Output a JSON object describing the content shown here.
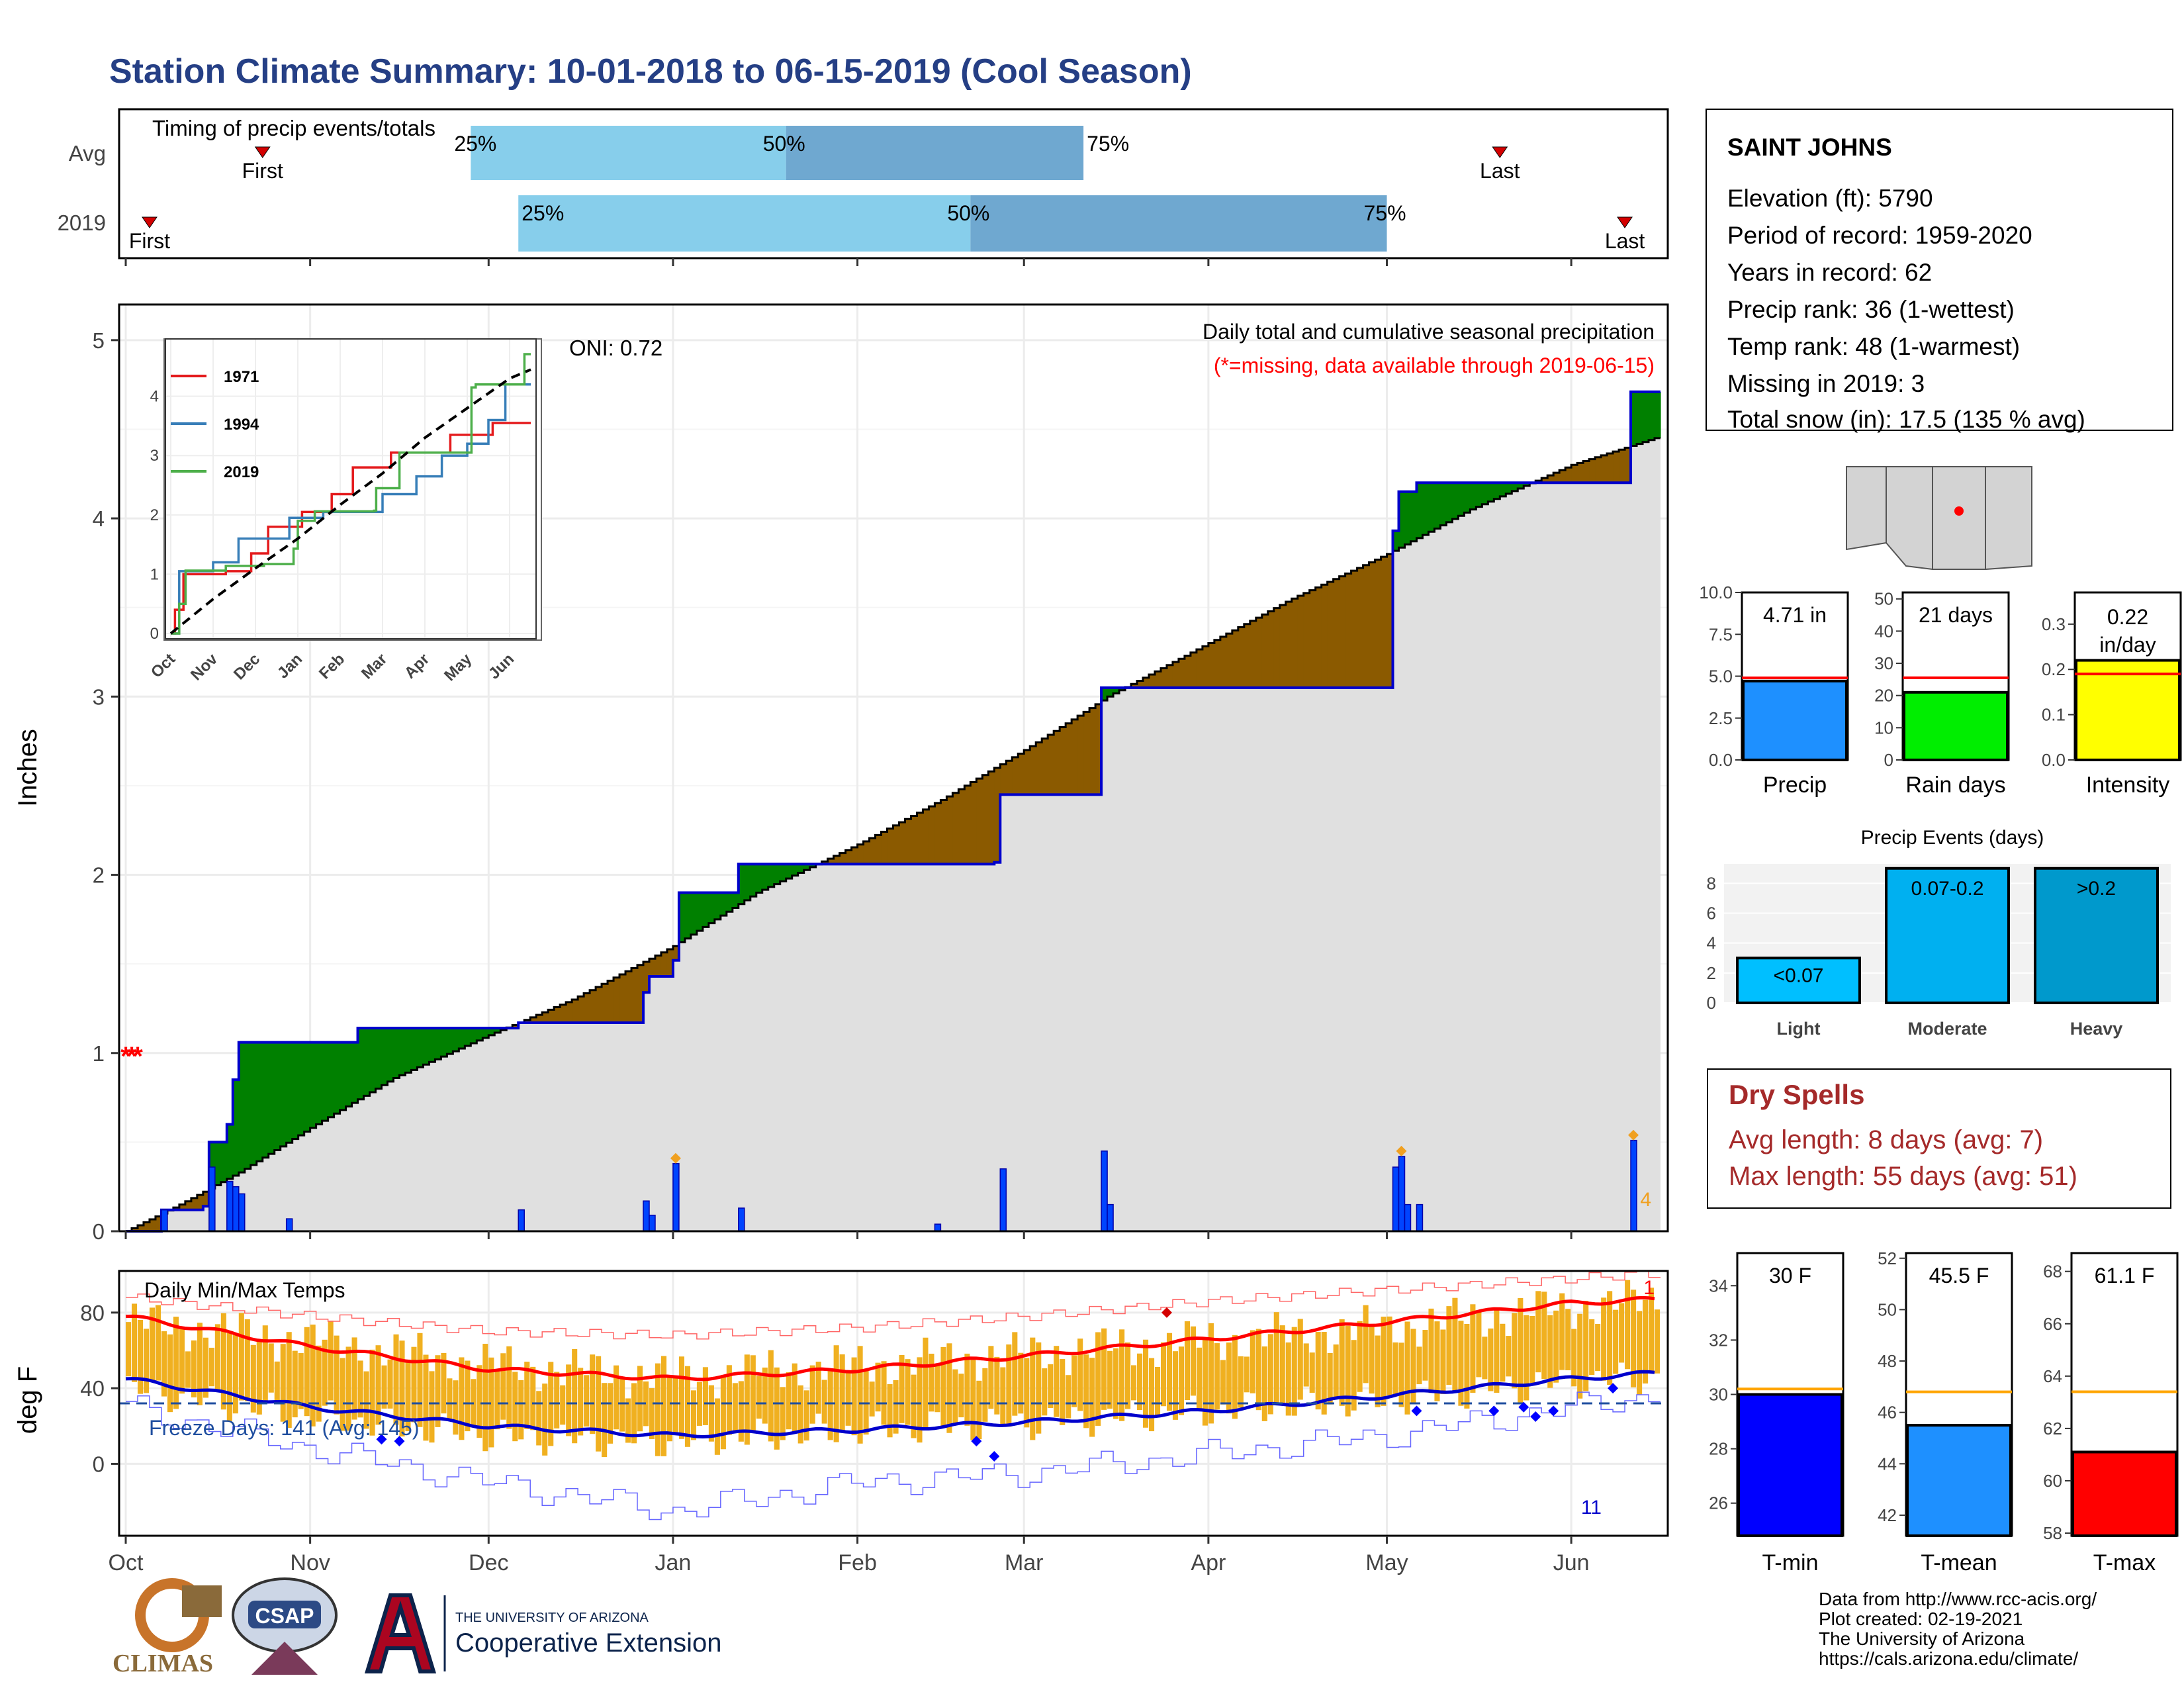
{
  "page": {
    "title": "Station Climate Summary: 10-01-2018 to 06-15-2019 (Cool Season)",
    "footer_credits": [
      "Data from http://www.rcc-acis.org/",
      "Plot created: 02-19-2021",
      "The University of Arizona",
      "https://cals.arizona.edu/climate/"
    ],
    "logos": {
      "climas": "CLIMAS",
      "csap": "CSAP",
      "ua_line1": "THE UNIVERSITY OF ARIZONA",
      "ua_line2": "Cooperative Extension"
    }
  },
  "station": {
    "name": "SAINT JOHNS",
    "lines": [
      "Elevation (ft): 5790",
      "Period of record: 1959-2020",
      "Years in record: 62",
      "Precip rank: 36 (1-wettest)",
      "Temp rank: 48 (1-warmest)",
      "Missing in 2019: 3",
      "Total snow (in): 17.5 (135 % avg)"
    ]
  },
  "dry_spells": {
    "title": "Dry Spells",
    "lines": [
      "Avg length: 8 days (avg: 7)",
      "Max length: 55 days (avg: 51)"
    ]
  },
  "chart_data": [
    {
      "id": "timing",
      "type": "bar",
      "title": "Timing of precip events/totals",
      "rows": [
        {
          "label": "Avg",
          "first": "2018-10-24",
          "p25": "2018-11-28",
          "p50": "2019-01-20",
          "p75": "2019-03-11",
          "last": "2019-05-20"
        },
        {
          "label": "2019",
          "first": "2018-10-05",
          "p25": "2018-12-06",
          "p50": "2019-02-20",
          "p75": "2019-05-01",
          "last": "2019-06-10"
        }
      ],
      "labels": {
        "first": "First",
        "last": "Last",
        "p25": "25%",
        "p50": "50%",
        "p75": "75%"
      },
      "colors": {
        "light": "#87ceeb",
        "dark": "#6fa8d0",
        "marker": "#d40000"
      }
    },
    {
      "id": "precip",
      "type": "area",
      "ylabel": "Inches",
      "ylim": [
        0,
        5.2
      ],
      "y_ticks": [
        0,
        1,
        2,
        3,
        4,
        5
      ],
      "x_tick_labels": [
        "Oct",
        "Nov",
        "Dec",
        "Jan",
        "Feb",
        "Mar",
        "Apr",
        "May",
        "Jun"
      ],
      "x_tick_dates": [
        "2018-10-01",
        "2018-11-01",
        "2018-12-01",
        "2019-01-01",
        "2019-02-01",
        "2019-03-01",
        "2019-04-01",
        "2019-05-01",
        "2019-06-01"
      ],
      "annotation_title": "Daily total and cumulative seasonal precipitation",
      "annotation_missing": "(*=missing, data available through 2019-06-15)",
      "oni": "ONI: 0.72",
      "right_count": "4",
      "avg_cumulative": [
        [
          "2018-10-01",
          0
        ],
        [
          "2018-10-10",
          0.15
        ],
        [
          "2018-10-20",
          0.33
        ],
        [
          "2018-11-01",
          0.58
        ],
        [
          "2018-11-15",
          0.86
        ],
        [
          "2018-12-01",
          1.1
        ],
        [
          "2018-12-15",
          1.3
        ],
        [
          "2019-01-01",
          1.6
        ],
        [
          "2019-01-15",
          1.9
        ],
        [
          "2019-02-01",
          2.17
        ],
        [
          "2019-02-15",
          2.42
        ],
        [
          "2019-03-01",
          2.7
        ],
        [
          "2019-03-15",
          3.0
        ],
        [
          "2019-04-01",
          3.3
        ],
        [
          "2019-04-15",
          3.55
        ],
        [
          "2019-05-01",
          3.8
        ],
        [
          "2019-05-15",
          4.05
        ],
        [
          "2019-06-01",
          4.3
        ],
        [
          "2019-06-15",
          4.45
        ]
      ],
      "cumulative_2019": [
        [
          "2018-10-01",
          0
        ],
        [
          "2018-10-07",
          0.12
        ],
        [
          "2018-10-14",
          0.14
        ],
        [
          "2018-10-15",
          0.5
        ],
        [
          "2018-10-18",
          0.6
        ],
        [
          "2018-10-19",
          0.85
        ],
        [
          "2018-10-20",
          1.06
        ],
        [
          "2018-10-22",
          1.06
        ],
        [
          "2018-11-09",
          1.14
        ],
        [
          "2018-12-05",
          1.14
        ],
        [
          "2018-12-06",
          1.17
        ],
        [
          "2018-12-27",
          1.34
        ],
        [
          "2018-12-28",
          1.43
        ],
        [
          "2019-01-01",
          1.52
        ],
        [
          "2019-01-02",
          1.9
        ],
        [
          "2019-01-12",
          2.06
        ],
        [
          "2019-02-24",
          2.07
        ],
        [
          "2019-02-25",
          2.45
        ],
        [
          "2019-03-13",
          2.45
        ],
        [
          "2019-03-14",
          3.05
        ],
        [
          "2019-05-01",
          3.05
        ],
        [
          "2019-05-02",
          3.93
        ],
        [
          "2019-05-03",
          4.15
        ],
        [
          "2019-05-05",
          4.15
        ],
        [
          "2019-05-06",
          4.2
        ],
        [
          "2019-06-10",
          4.2
        ],
        [
          "2019-06-11",
          4.71
        ],
        [
          "2019-06-15",
          4.71
        ]
      ],
      "daily": [
        [
          "2018-10-07",
          0.12
        ],
        [
          "2018-10-15",
          0.36
        ],
        [
          "2018-10-18",
          0.28
        ],
        [
          "2018-10-19",
          0.25
        ],
        [
          "2018-10-20",
          0.21
        ],
        [
          "2018-10-28",
          0.07
        ],
        [
          "2018-12-06",
          0.12
        ],
        [
          "2018-12-27",
          0.17
        ],
        [
          "2018-12-28",
          0.09
        ],
        [
          "2019-01-01",
          0.38
        ],
        [
          "2019-01-12",
          0.13
        ],
        [
          "2019-02-14",
          0.04
        ],
        [
          "2019-02-25",
          0.35
        ],
        [
          "2019-03-14",
          0.45
        ],
        [
          "2019-03-15",
          0.15
        ],
        [
          "2019-05-02",
          0.36
        ],
        [
          "2019-05-03",
          0.42
        ],
        [
          "2019-05-04",
          0.15
        ],
        [
          "2019-05-06",
          0.15
        ],
        [
          "2019-06-11",
          0.51
        ]
      ],
      "missing_markers": [
        [
          "2018-10-01",
          1.0
        ],
        [
          "2018-10-02",
          1.0
        ],
        [
          "2018-10-03",
          1.0
        ]
      ],
      "colors": {
        "surplus": "#008000",
        "deficit": "#8b5a00",
        "avg_fill": "#e0e0e0",
        "line_2019": "#0000cc",
        "daily": "#0044ff",
        "missing": "#ff0000",
        "snow_marker": "#f0a020"
      }
    },
    {
      "id": "analog_inset",
      "type": "line",
      "x_tick_labels": [
        "Oct",
        "Nov",
        "Dec",
        "Jan",
        "Feb",
        "Mar",
        "Apr",
        "May",
        "Jun"
      ],
      "y_ticks": [
        0,
        1,
        2,
        3,
        4
      ],
      "ylim": [
        0,
        4.9
      ],
      "series": [
        {
          "name": "1971",
          "color": "#e41a1c",
          "values": [
            [
              0,
              0
            ],
            [
              0.1,
              0.4
            ],
            [
              0.3,
              1.0
            ],
            [
              1.3,
              1.05
            ],
            [
              1.9,
              1.35
            ],
            [
              2.3,
              1.8
            ],
            [
              3.1,
              2.05
            ],
            [
              3.8,
              2.35
            ],
            [
              4.3,
              2.8
            ],
            [
              5.2,
              3.05
            ],
            [
              6.6,
              3.35
            ],
            [
              7.6,
              3.55
            ],
            [
              8.5,
              3.55
            ]
          ]
        },
        {
          "name": "1994",
          "color": "#377eb8",
          "values": [
            [
              0,
              0
            ],
            [
              0.2,
              1.05
            ],
            [
              1.0,
              1.2
            ],
            [
              1.6,
              1.6
            ],
            [
              2.8,
              1.95
            ],
            [
              3.6,
              2.05
            ],
            [
              5.0,
              2.35
            ],
            [
              5.8,
              2.65
            ],
            [
              6.4,
              3.0
            ],
            [
              7.0,
              3.2
            ],
            [
              7.5,
              3.6
            ],
            [
              7.9,
              4.2
            ],
            [
              8.5,
              4.2
            ]
          ]
        },
        {
          "name": "2019",
          "color": "#4daf4a",
          "values": [
            [
              0,
              0
            ],
            [
              0.2,
              0.5
            ],
            [
              0.35,
              1.06
            ],
            [
              1.3,
              1.14
            ],
            [
              2.2,
              1.17
            ],
            [
              2.9,
              1.43
            ],
            [
              3.0,
              1.9
            ],
            [
              3.4,
              2.06
            ],
            [
              4.8,
              2.07
            ],
            [
              4.85,
              2.45
            ],
            [
              5.4,
              3.05
            ],
            [
              7.05,
              3.05
            ],
            [
              7.1,
              4.15
            ],
            [
              7.2,
              4.2
            ],
            [
              8.3,
              4.2
            ],
            [
              8.35,
              4.71
            ],
            [
              8.5,
              4.71
            ]
          ]
        },
        {
          "name": "",
          "color": "#000000",
          "dashed": true,
          "values": [
            [
              0,
              0
            ],
            [
              1,
              0.58
            ],
            [
              2,
              1.1
            ],
            [
              3,
              1.6
            ],
            [
              4,
              2.17
            ],
            [
              5,
              2.7
            ],
            [
              6,
              3.3
            ],
            [
              7,
              3.8
            ],
            [
              8,
              4.3
            ],
            [
              8.5,
              4.45
            ]
          ]
        }
      ]
    },
    {
      "id": "temps",
      "type": "bar",
      "title": "Daily Min/Max Temps",
      "ylabel": "deg F",
      "ylim": [
        -38,
        102
      ],
      "y_ticks": [
        0,
        40,
        80
      ],
      "freeze_label": "Freeze Days: 141 (Avg: 145)",
      "freeze_line": 32,
      "count_top": "1",
      "count_bottom": "11",
      "x_tick_labels": [
        "Oct",
        "Nov",
        "Dec",
        "Jan",
        "Feb",
        "Mar",
        "Apr",
        "May",
        "Jun"
      ],
      "avg_max": [
        [
          "2018-10-01",
          78
        ],
        [
          "2018-11-01",
          62
        ],
        [
          "2018-12-01",
          50
        ],
        [
          "2019-01-01",
          45
        ],
        [
          "2019-02-01",
          50
        ],
        [
          "2019-03-01",
          57
        ],
        [
          "2019-04-01",
          66
        ],
        [
          "2019-05-01",
          75
        ],
        [
          "2019-06-01",
          85
        ],
        [
          "2019-06-15",
          87
        ]
      ],
      "avg_min": [
        [
          "2018-10-01",
          45
        ],
        [
          "2018-11-01",
          30
        ],
        [
          "2018-12-01",
          20
        ],
        [
          "2019-01-01",
          15
        ],
        [
          "2019-02-01",
          18
        ],
        [
          "2019-03-01",
          22
        ],
        [
          "2019-04-01",
          28
        ],
        [
          "2019-05-01",
          36
        ],
        [
          "2019-06-01",
          45
        ],
        [
          "2019-06-15",
          48
        ]
      ],
      "rec_max": [
        [
          "2018-10-01",
          88
        ],
        [
          "2018-11-01",
          78
        ],
        [
          "2018-12-01",
          70
        ],
        [
          "2019-01-01",
          68
        ],
        [
          "2019-02-01",
          72
        ],
        [
          "2019-03-01",
          78
        ],
        [
          "2019-04-01",
          86
        ],
        [
          "2019-05-01",
          92
        ],
        [
          "2019-06-01",
          98
        ],
        [
          "2019-06-15",
          101
        ]
      ],
      "rec_min": [
        [
          "2018-10-01",
          30
        ],
        [
          "2018-11-01",
          8
        ],
        [
          "2018-12-01",
          -10
        ],
        [
          "2019-01-01",
          -25
        ],
        [
          "2019-02-01",
          -10
        ],
        [
          "2019-03-01",
          -5
        ],
        [
          "2019-04-01",
          5
        ],
        [
          "2019-05-01",
          15
        ],
        [
          "2019-06-01",
          30
        ],
        [
          "2019-06-15",
          36
        ]
      ],
      "obs_max_anchor": [
        [
          "2018-10-01",
          75
        ],
        [
          "2018-11-01",
          65
        ],
        [
          "2018-12-01",
          52
        ],
        [
          "2019-01-01",
          46
        ],
        [
          "2019-02-01",
          52
        ],
        [
          "2019-03-01",
          58
        ],
        [
          "2019-04-01",
          65
        ],
        [
          "2019-05-01",
          72
        ],
        [
          "2019-06-01",
          83
        ],
        [
          "2019-06-15",
          86
        ]
      ],
      "obs_min_anchor": [
        [
          "2018-10-01",
          40
        ],
        [
          "2018-11-01",
          25
        ],
        [
          "2018-12-01",
          15
        ],
        [
          "2019-01-01",
          12
        ],
        [
          "2019-02-01",
          18
        ],
        [
          "2019-03-01",
          22
        ],
        [
          "2019-04-01",
          28
        ],
        [
          "2019-05-01",
          34
        ],
        [
          "2019-06-01",
          44
        ],
        [
          "2019-06-15",
          46
        ]
      ],
      "rec_cold_marks": [
        [
          "2018-11-13",
          13
        ],
        [
          "2018-11-16",
          12
        ],
        [
          "2019-02-21",
          12
        ],
        [
          "2019-02-24",
          4
        ],
        [
          "2019-05-06",
          28
        ],
        [
          "2019-05-19",
          28
        ],
        [
          "2019-05-24",
          30
        ],
        [
          "2019-05-26",
          25
        ],
        [
          "2019-05-29",
          28
        ],
        [
          "2019-06-08",
          40
        ]
      ],
      "rec_warm_marks": [
        [
          "2019-03-25",
          80
        ]
      ],
      "colors": {
        "bars": "#f0b020",
        "avg_max": "#ff0000",
        "avg_min": "#0000cc",
        "rec_max": "#ff6666",
        "rec_min": "#6666ff",
        "freeze": "#1f4e9f"
      }
    },
    {
      "id": "seasonal_precip_bars",
      "type": "bar",
      "panels": [
        {
          "label": "Precip",
          "value": 4.71,
          "value_label": "4.71 in",
          "avg": 4.9,
          "ylim": [
            0,
            10
          ],
          "y_ticks": [
            "0.0",
            "2.5",
            "5.0",
            "7.5",
            "10.0"
          ],
          "color": "#1e90ff"
        },
        {
          "label": "Rain days",
          "value": 21,
          "value_label": "21 days",
          "avg": 25.5,
          "ylim": [
            0,
            52
          ],
          "y_ticks": [
            "0",
            "10",
            "20",
            "30",
            "40",
            "50"
          ],
          "color": "#00ee00"
        },
        {
          "label": "Intensity",
          "value": 0.22,
          "value_label": "0.22 in/day",
          "avg": 0.19,
          "ylim": [
            0,
            0.37
          ],
          "y_ticks": [
            "0.0",
            "0.1",
            "0.2",
            "0.3"
          ],
          "color": "#ffff00"
        }
      ],
      "avg_color": "#ff0000"
    },
    {
      "id": "precip_events",
      "type": "bar",
      "title": "Precip Events (days)",
      "categories": [
        "Light",
        "Moderate",
        "Heavy"
      ],
      "bar_labels": [
        "<0.07",
        "0.07-0.2",
        ">0.2"
      ],
      "values": [
        3,
        9,
        9
      ],
      "ylim": [
        0,
        9.3
      ],
      "y_ticks": [
        0,
        2,
        4,
        6,
        8
      ],
      "colors": [
        "#00bfff",
        "#00b0f0",
        "#0099cc"
      ]
    },
    {
      "id": "seasonal_temp_bars",
      "type": "bar",
      "panels": [
        {
          "label": "T-min",
          "value": 30.0,
          "value_label": "30 F",
          "avg": 30.2,
          "ylim": [
            24.8,
            35.2
          ],
          "y_ticks": [
            26,
            28,
            30,
            32,
            34
          ],
          "color": "#0000ff"
        },
        {
          "label": "T-mean",
          "value": 45.5,
          "value_label": "45.5 F",
          "avg": 46.8,
          "ylim": [
            41.2,
            52.2
          ],
          "y_ticks": [
            42,
            44,
            46,
            48,
            50,
            52
          ],
          "color": "#1e90ff"
        },
        {
          "label": "T-max",
          "value": 61.1,
          "value_label": "61.1 F",
          "avg": 63.4,
          "ylim": [
            57.9,
            68.7
          ],
          "y_ticks": [
            58,
            60,
            62,
            64,
            66,
            68
          ],
          "color": "#ff0000"
        }
      ],
      "avg_color": "#ffa500"
    }
  ]
}
